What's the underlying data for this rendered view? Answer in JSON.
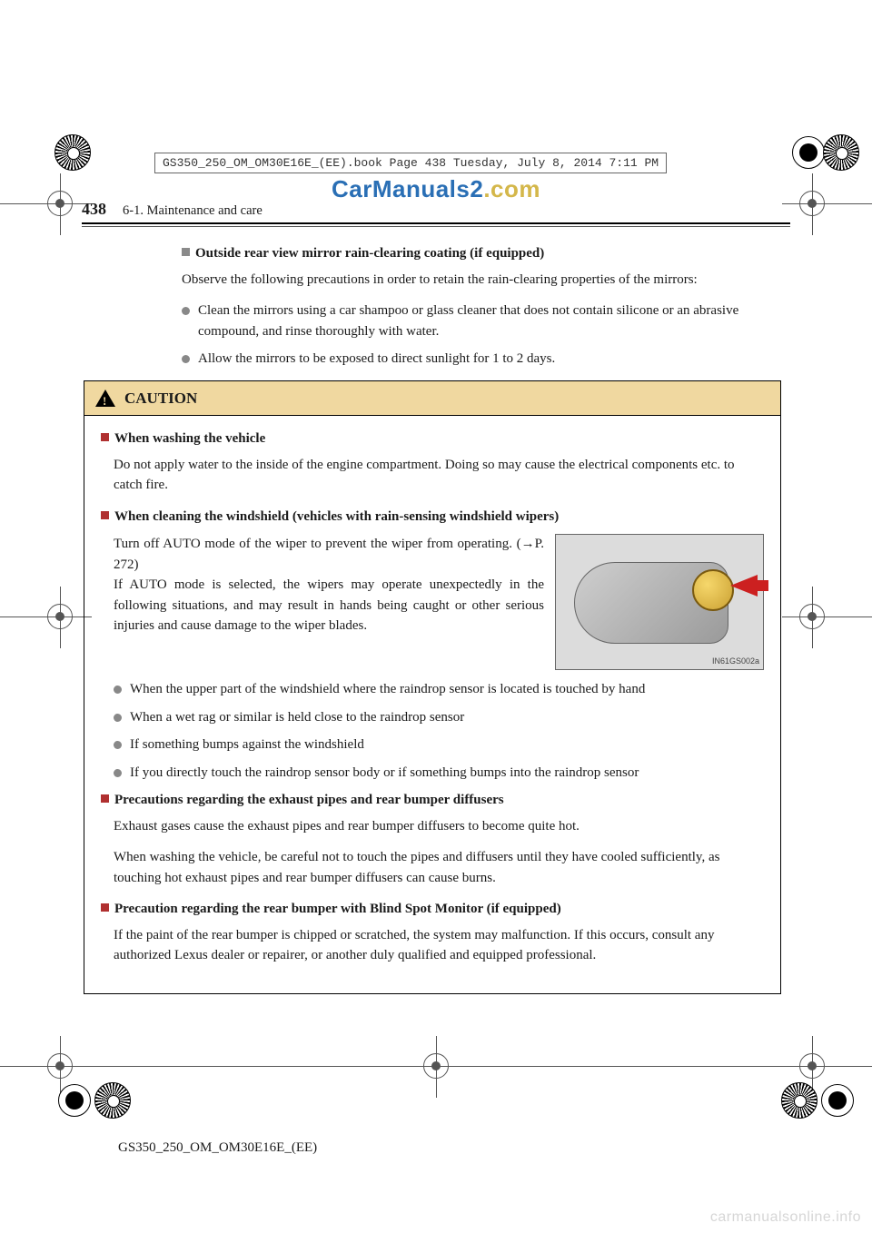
{
  "meta": {
    "file_header": "GS350_250_OM_OM30E16E_(EE).book  Page 438  Tuesday, July 8, 2014  7:11 PM",
    "top_watermark_1": "CarManuals2",
    "top_watermark_2": ".com",
    "top_watermark_color1": "#2a6fb5",
    "top_watermark_color2": "#d4b74a",
    "page_number": "438",
    "section": "6-1. Maintenance and care",
    "footer_code": "GS350_250_OM_OM30E16E_(EE)",
    "bottom_watermark": "carmanualsonline.info",
    "illus_label": "IN61GS002a"
  },
  "top_block": {
    "heading": "Outside rear view mirror rain-clearing coating (if equipped)",
    "intro": "Observe the following precautions in order to retain the rain-clearing properties of the mirrors:",
    "bullets": [
      "Clean the mirrors using a car shampoo or glass cleaner that does not contain silicone or an abrasive compound, and rinse thoroughly with water.",
      "Allow the mirrors to be exposed to direct sunlight for 1 to 2 days."
    ]
  },
  "caution": {
    "title": "CAUTION",
    "s1": {
      "h": "When washing the vehicle",
      "p": "Do not apply water to the inside of the engine compartment. Doing so may cause the electrical components etc. to catch fire."
    },
    "s2": {
      "h": "When cleaning the windshield (vehicles with rain-sensing windshield wipers)",
      "p": "Turn off AUTO mode of the wiper to prevent the wiper from operating. (→P. 272)\nIf AUTO mode is selected, the wipers may operate unexpectedly in the following situations, and may result in hands being caught or other serious injuries and cause damage to the wiper blades.",
      "bullets": [
        "When the upper part of the windshield where the raindrop sensor is located is touched by hand",
        "When a wet rag or similar is held close to the raindrop sensor",
        "If something bumps against the windshield",
        "If you directly touch the raindrop sensor body or if something bumps into the raindrop sensor"
      ]
    },
    "s3": {
      "h": "Precautions regarding the exhaust pipes and rear bumper diffusers",
      "p1": "Exhaust gases cause the exhaust pipes and rear bumper diffusers to become quite hot.",
      "p2": "When washing the vehicle, be careful not to touch the pipes and diffusers until they have cooled sufficiently, as touching hot exhaust pipes and rear bumper diffusers can cause burns."
    },
    "s4": {
      "h": "Precaution regarding the rear bumper with Blind Spot Monitor (if equipped)",
      "p": "If the paint of the rear bumper is chipped or scratched, the system may malfunction. If this occurs, consult any authorized Lexus dealer or repairer, or another duly qualified and equipped professional."
    }
  }
}
